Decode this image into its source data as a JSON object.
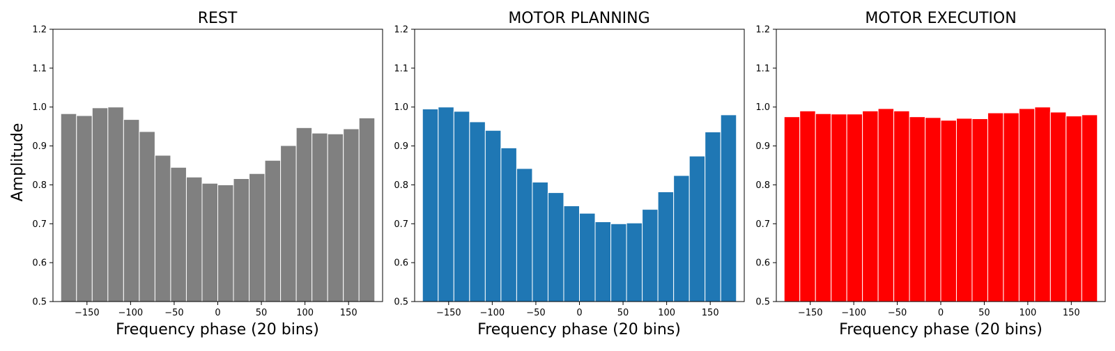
{
  "figure": {
    "ylabel": "Amplitude"
  },
  "chart_data": [
    {
      "type": "bar",
      "title": "REST",
      "xlabel": "Frequency phase (20 bins)",
      "ylabel": "Amplitude",
      "color": "#808080",
      "xlim": [
        -189,
        189
      ],
      "ylim": [
        0.5,
        1.2
      ],
      "x": [
        -171,
        -153,
        -135,
        -117,
        -99,
        -81,
        -63,
        -45,
        -27,
        -9,
        9,
        27,
        45,
        63,
        81,
        99,
        117,
        135,
        153,
        171
      ],
      "bin_width": 18,
      "values": [
        0.983,
        0.978,
        0.998,
        1.0,
        0.968,
        0.937,
        0.876,
        0.845,
        0.82,
        0.804,
        0.8,
        0.816,
        0.829,
        0.863,
        0.901,
        0.947,
        0.933,
        0.931,
        0.944,
        0.972
      ],
      "xticks": [
        "−150",
        "−100",
        "−50",
        "0",
        "50",
        "100",
        "150"
      ],
      "xtick_values": [
        -150,
        -100,
        -50,
        0,
        50,
        100,
        150
      ],
      "yticks": [
        "0.5",
        "0.6",
        "0.7",
        "0.8",
        "0.9",
        "1.0",
        "1.1",
        "1.2"
      ],
      "ytick_values": [
        0.5,
        0.6,
        0.7,
        0.8,
        0.9,
        1.0,
        1.1,
        1.2
      ]
    },
    {
      "type": "bar",
      "title": "MOTOR PLANNING",
      "xlabel": "Frequency phase (20 bins)",
      "ylabel": "",
      "color": "#1f77b4",
      "xlim": [
        -189,
        189
      ],
      "ylim": [
        0.5,
        1.2
      ],
      "x": [
        -171,
        -153,
        -135,
        -117,
        -99,
        -81,
        -63,
        -45,
        -27,
        -9,
        9,
        27,
        45,
        63,
        81,
        99,
        117,
        135,
        153,
        171
      ],
      "bin_width": 18,
      "values": [
        0.995,
        1.0,
        0.989,
        0.962,
        0.94,
        0.895,
        0.842,
        0.807,
        0.78,
        0.746,
        0.727,
        0.705,
        0.7,
        0.702,
        0.737,
        0.782,
        0.824,
        0.874,
        0.936,
        0.98
      ],
      "xticks": [
        "−150",
        "−100",
        "−50",
        "0",
        "50",
        "100",
        "150"
      ],
      "xtick_values": [
        -150,
        -100,
        -50,
        0,
        50,
        100,
        150
      ],
      "yticks": [
        "0.5",
        "0.6",
        "0.7",
        "0.8",
        "0.9",
        "1.0",
        "1.1",
        "1.2"
      ],
      "ytick_values": [
        0.5,
        0.6,
        0.7,
        0.8,
        0.9,
        1.0,
        1.1,
        1.2
      ]
    },
    {
      "type": "bar",
      "title": "MOTOR EXECUTION",
      "xlabel": "Frequency phase (20 bins)",
      "ylabel": "",
      "color": "#ff0000",
      "xlim": [
        -189,
        189
      ],
      "ylim": [
        0.5,
        1.2
      ],
      "x": [
        -171,
        -153,
        -135,
        -117,
        -99,
        -81,
        -63,
        -45,
        -27,
        -9,
        9,
        27,
        45,
        63,
        81,
        99,
        117,
        135,
        153,
        171
      ],
      "bin_width": 18,
      "values": [
        0.975,
        0.99,
        0.983,
        0.982,
        0.982,
        0.99,
        0.996,
        0.99,
        0.975,
        0.973,
        0.966,
        0.971,
        0.97,
        0.985,
        0.985,
        0.996,
        1.0,
        0.987,
        0.977,
        0.98
      ],
      "xticks": [
        "−150",
        "−100",
        "−50",
        "0",
        "50",
        "100",
        "150"
      ],
      "xtick_values": [
        -150,
        -100,
        -50,
        0,
        50,
        100,
        150
      ],
      "yticks": [
        "0.5",
        "0.6",
        "0.7",
        "0.8",
        "0.9",
        "1.0",
        "1.1",
        "1.2"
      ],
      "ytick_values": [
        0.5,
        0.6,
        0.7,
        0.8,
        0.9,
        1.0,
        1.1,
        1.2
      ]
    }
  ]
}
